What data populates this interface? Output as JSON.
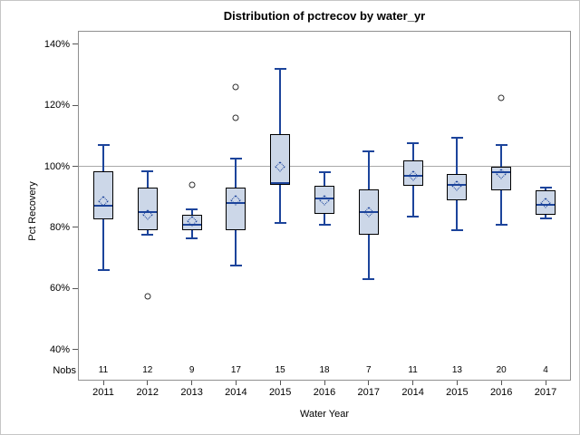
{
  "window": {
    "kind": "statistical-graphic"
  },
  "chart_data": {
    "type": "box",
    "title": "Distribution of pctrecov by water_yr",
    "xlabel": "Water Year",
    "ylabel": "Pct Recovery",
    "nobs_row_label": "Nobs",
    "y_axis": {
      "tick_values": [
        140,
        120,
        100,
        80,
        60,
        40
      ],
      "tick_labels": [
        "140%",
        "120%",
        "100%",
        "80%",
        "60%",
        "40%"
      ],
      "unit": "percent",
      "value_min": 29.8,
      "value_max": 144.4
    },
    "reference_line": {
      "value": 100,
      "color": "#a9a9a9"
    },
    "grid": "off",
    "legend": "none",
    "categories": [
      "2011",
      "2012",
      "2013",
      "2014",
      "2015",
      "2016",
      "2017",
      "2014",
      "2015",
      "2016",
      "2017"
    ],
    "nobs": [
      11,
      12,
      9,
      17,
      15,
      18,
      7,
      11,
      13,
      20,
      4
    ],
    "boxes": [
      {
        "year": "2011",
        "n": 11,
        "whisker_low": 66,
        "q1": 82.5,
        "median": 87,
        "mean": 88.5,
        "q3": 98.5,
        "whisker_high": 107,
        "outliers": []
      },
      {
        "year": "2012",
        "n": 12,
        "whisker_low": 77.5,
        "q1": 79,
        "median": 85,
        "mean": 84,
        "q3": 93,
        "whisker_high": 98.5,
        "outliers": [
          57.5
        ]
      },
      {
        "year": "2013",
        "n": 9,
        "whisker_low": 76.5,
        "q1": 79,
        "median": 81,
        "mean": 82,
        "q3": 84,
        "whisker_high": 86,
        "outliers": [
          94
        ]
      },
      {
        "year": "2014",
        "n": 17,
        "whisker_low": 67.5,
        "q1": 79,
        "median": 88,
        "mean": 89,
        "q3": 93,
        "whisker_high": 102.5,
        "outliers": [
          116,
          126
        ]
      },
      {
        "year": "2015",
        "n": 15,
        "whisker_low": 81.5,
        "q1": 94,
        "median": 94.5,
        "mean": 100,
        "q3": 110.5,
        "whisker_high": 132,
        "outliers": []
      },
      {
        "year": "2016",
        "n": 18,
        "whisker_low": 81,
        "q1": 84.5,
        "median": 89.5,
        "mean": 89,
        "q3": 93.5,
        "whisker_high": 98,
        "outliers": []
      },
      {
        "year": "2017",
        "n": 7,
        "whisker_low": 63,
        "q1": 77.5,
        "median": 85,
        "mean": 85,
        "q3": 92.5,
        "whisker_high": 105,
        "outliers": []
      },
      {
        "year": "2014",
        "n": 11,
        "whisker_low": 83.5,
        "q1": 93.5,
        "median": 97,
        "mean": 97,
        "q3": 102,
        "whisker_high": 107.5,
        "outliers": []
      },
      {
        "year": "2015",
        "n": 13,
        "whisker_low": 79,
        "q1": 89,
        "median": 94,
        "mean": 93.5,
        "q3": 97.5,
        "whisker_high": 109.5,
        "outliers": []
      },
      {
        "year": "2016",
        "n": 20,
        "whisker_low": 81,
        "q1": 92,
        "median": 98,
        "mean": 97.5,
        "q3": 100,
        "whisker_high": 107,
        "outliers": [
          122.5
        ]
      },
      {
        "year": "2017",
        "n": 4,
        "whisker_low": 83,
        "q1": 84,
        "median": 87.5,
        "mean": 88,
        "q3": 92,
        "whisker_high": 93,
        "outliers": []
      }
    ],
    "colors": {
      "box_fill": "#ccd7e8",
      "box_border": "#000000",
      "line_blue": "#1c449b",
      "frame": "#8f8f8f",
      "reference": "#a9a9a9",
      "outlier_stroke": "#2e2e2e"
    }
  }
}
